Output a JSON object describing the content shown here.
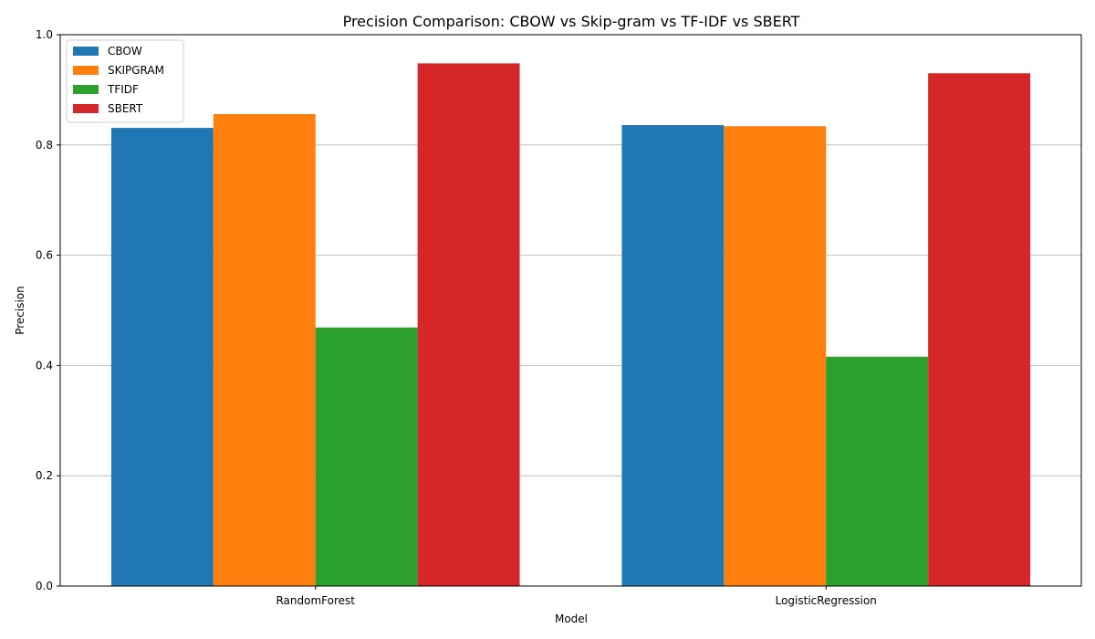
{
  "chart_data": {
    "type": "bar",
    "title": "Precision Comparison: CBOW vs Skip-gram vs TF-IDF vs SBERT",
    "xlabel": "Model",
    "ylabel": "Precision",
    "categories": [
      "RandomForest",
      "LogisticRegression"
    ],
    "series": [
      {
        "name": "CBOW",
        "color": "#1f77b4",
        "values": [
          0.831,
          0.836
        ]
      },
      {
        "name": "SKIPGRAM",
        "color": "#ff7f0e",
        "values": [
          0.856,
          0.834
        ]
      },
      {
        "name": "TFIDF",
        "color": "#2ca02c",
        "values": [
          0.469,
          0.416
        ]
      },
      {
        "name": "SBERT",
        "color": "#d62728",
        "values": [
          0.948,
          0.93
        ]
      }
    ],
    "ylim": [
      0,
      1.0
    ],
    "yticks": [
      "0.0",
      "0.2",
      "0.4",
      "0.6",
      "0.8",
      "1.0"
    ],
    "grid": "y",
    "legend_position": "top-left"
  }
}
